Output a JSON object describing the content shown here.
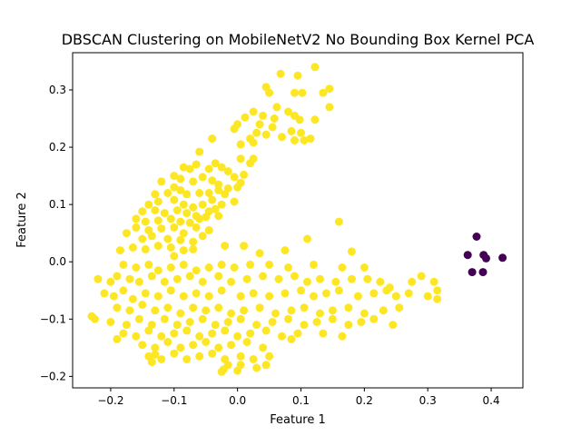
{
  "chart_data": {
    "type": "scatter",
    "title": "DBSCAN Clustering on MobileNetV2 No Bounding Box Kernel PCA",
    "xlabel": "Feature 1",
    "ylabel": "Feature 2",
    "xlim": [
      -0.26,
      0.45
    ],
    "ylim": [
      -0.22,
      0.365
    ],
    "xticks": [
      -0.2,
      -0.1,
      0.0,
      0.1,
      0.2,
      0.3,
      0.4
    ],
    "xtick_labels": [
      "−0.2",
      "−0.1",
      "0.0",
      "0.1",
      "0.2",
      "0.3",
      "0.4"
    ],
    "yticks": [
      -0.2,
      -0.1,
      0.0,
      0.1,
      0.2,
      0.3
    ],
    "ytick_labels": [
      "−0.2",
      "−0.1",
      "0.0",
      "0.1",
      "0.2",
      "0.3"
    ],
    "grid": false,
    "colors": {
      "cluster": "#fde725",
      "noise": "#440154"
    },
    "series": [
      {
        "color": "#fde725",
        "points": [
          [
            0.068,
            0.328
          ],
          [
            0.122,
            0.34
          ],
          [
            0.095,
            0.325
          ],
          [
            0.045,
            0.305
          ],
          [
            0.05,
            0.295
          ],
          [
            0.135,
            0.295
          ],
          [
            0.145,
            0.302
          ],
          [
            0.09,
            0.295
          ],
          [
            0.102,
            0.295
          ],
          [
            0.025,
            0.262
          ],
          [
            0.04,
            0.255
          ],
          [
            0.058,
            0.25
          ],
          [
            0.08,
            0.262
          ],
          [
            0.09,
            0.255
          ],
          [
            0.098,
            0.248
          ],
          [
            0.122,
            0.248
          ],
          [
            0.012,
            0.252
          ],
          [
            0.062,
            0.27
          ],
          [
            0.035,
            0.24
          ],
          [
            0.055,
            0.235
          ],
          [
            0.085,
            0.228
          ],
          [
            0.1,
            0.225
          ],
          [
            0.115,
            0.215
          ],
          [
            0.145,
            0.27
          ],
          [
            0.0,
            0.24
          ],
          [
            0.03,
            0.225
          ],
          [
            -0.005,
            0.232
          ],
          [
            0.02,
            0.215
          ],
          [
            0.045,
            0.222
          ],
          [
            0.07,
            0.218
          ],
          [
            0.09,
            0.212
          ],
          [
            0.105,
            0.212
          ],
          [
            0.005,
            0.205
          ],
          [
            0.025,
            0.208
          ],
          [
            -0.04,
            0.215
          ],
          [
            -0.06,
            0.192
          ],
          [
            -0.035,
            0.172
          ],
          [
            -0.075,
            0.162
          ],
          [
            -0.1,
            0.15
          ],
          [
            -0.09,
            0.145
          ],
          [
            0.02,
            0.172
          ],
          [
            0.025,
            0.18
          ],
          [
            0.005,
            0.18
          ],
          [
            -0.085,
            0.165
          ],
          [
            -0.065,
            0.17
          ],
          [
            -0.045,
            0.162
          ],
          [
            -0.025,
            0.165
          ],
          [
            -0.015,
            0.158
          ],
          [
            -0.005,
            0.148
          ],
          [
            0.01,
            0.152
          ],
          [
            -0.12,
            0.14
          ],
          [
            -0.1,
            0.13
          ],
          [
            -0.07,
            0.14
          ],
          [
            -0.055,
            0.148
          ],
          [
            -0.04,
            0.142
          ],
          [
            -0.03,
            0.135
          ],
          [
            -0.015,
            0.128
          ],
          [
            0.005,
            0.138
          ],
          [
            -0.13,
            0.118
          ],
          [
            -0.11,
            0.12
          ],
          [
            -0.09,
            0.125
          ],
          [
            -0.08,
            0.118
          ],
          [
            -0.06,
            0.12
          ],
          [
            -0.045,
            0.12
          ],
          [
            -0.03,
            0.125
          ],
          [
            -0.02,
            0.118
          ],
          [
            0.0,
            0.13
          ],
          [
            -0.14,
            0.1
          ],
          [
            -0.125,
            0.105
          ],
          [
            -0.1,
            0.108
          ],
          [
            -0.085,
            0.1
          ],
          [
            -0.07,
            0.095
          ],
          [
            -0.055,
            0.1
          ],
          [
            -0.04,
            0.108
          ],
          [
            -0.025,
            0.1
          ],
          [
            -0.005,
            0.105
          ],
          [
            -0.15,
            0.088
          ],
          [
            -0.13,
            0.09
          ],
          [
            -0.115,
            0.085
          ],
          [
            -0.095,
            0.09
          ],
          [
            -0.08,
            0.085
          ],
          [
            -0.065,
            0.08
          ],
          [
            -0.045,
            0.088
          ],
          [
            -0.035,
            0.092
          ],
          [
            -0.16,
            0.075
          ],
          [
            -0.145,
            0.07
          ],
          [
            -0.125,
            0.072
          ],
          [
            -0.105,
            0.075
          ],
          [
            -0.09,
            0.07
          ],
          [
            -0.075,
            0.068
          ],
          [
            -0.06,
            0.075
          ],
          [
            -0.05,
            0.078
          ],
          [
            -0.03,
            0.08
          ],
          [
            -0.175,
            0.05
          ],
          [
            -0.16,
            0.06
          ],
          [
            -0.14,
            0.055
          ],
          [
            -0.12,
            0.058
          ],
          [
            -0.1,
            0.06
          ],
          [
            -0.085,
            0.05
          ],
          [
            -0.065,
            0.06
          ],
          [
            -0.045,
            0.055
          ],
          [
            -0.15,
            0.04
          ],
          [
            -0.135,
            0.045
          ],
          [
            -0.11,
            0.04
          ],
          [
            -0.09,
            0.038
          ],
          [
            -0.07,
            0.035
          ],
          [
            -0.055,
            0.045
          ],
          [
            -0.185,
            0.02
          ],
          [
            -0.165,
            0.025
          ],
          [
            -0.145,
            0.022
          ],
          [
            -0.125,
            0.028
          ],
          [
            -0.105,
            0.025
          ],
          [
            -0.085,
            0.02
          ],
          [
            -0.07,
            0.022
          ],
          [
            -0.1,
            0.01
          ],
          [
            0.075,
            0.02
          ],
          [
            0.11,
            0.04
          ],
          [
            0.16,
            0.07
          ],
          [
            0.18,
            0.018
          ],
          [
            0.01,
            0.028
          ],
          [
            -0.02,
            0.028
          ],
          [
            0.035,
            0.015
          ],
          [
            -0.18,
            -0.005
          ],
          [
            -0.16,
            -0.01
          ],
          [
            -0.14,
            -0.005
          ],
          [
            -0.125,
            -0.015
          ],
          [
            -0.105,
            -0.01
          ],
          [
            -0.085,
            -0.005
          ],
          [
            -0.065,
            -0.015
          ],
          [
            -0.045,
            -0.01
          ],
          [
            -0.025,
            -0.005
          ],
          [
            -0.005,
            -0.01
          ],
          [
            0.02,
            -0.005
          ],
          [
            0.05,
            -0.005
          ],
          [
            0.08,
            -0.01
          ],
          [
            0.12,
            -0.005
          ],
          [
            0.165,
            -0.01
          ],
          [
            0.2,
            -0.01
          ],
          [
            -0.22,
            -0.03
          ],
          [
            -0.2,
            -0.035
          ],
          [
            -0.19,
            -0.025
          ],
          [
            -0.17,
            -0.03
          ],
          [
            -0.155,
            -0.035
          ],
          [
            -0.135,
            -0.025
          ],
          [
            -0.115,
            -0.035
          ],
          [
            -0.095,
            -0.03
          ],
          [
            -0.075,
            -0.025
          ],
          [
            -0.055,
            -0.035
          ],
          [
            -0.03,
            -0.025
          ],
          [
            -0.01,
            -0.035
          ],
          [
            0.015,
            -0.03
          ],
          [
            0.04,
            -0.025
          ],
          [
            0.065,
            -0.03
          ],
          [
            0.09,
            -0.025
          ],
          [
            0.11,
            -0.035
          ],
          [
            0.13,
            -0.03
          ],
          [
            0.155,
            -0.035
          ],
          [
            0.18,
            -0.03
          ],
          [
            0.205,
            -0.03
          ],
          [
            0.225,
            -0.035
          ],
          [
            0.24,
            -0.045
          ],
          [
            0.275,
            -0.035
          ],
          [
            0.31,
            -0.035
          ],
          [
            0.315,
            -0.05
          ],
          [
            0.29,
            -0.025
          ],
          [
            -0.21,
            -0.055
          ],
          [
            -0.195,
            -0.06
          ],
          [
            -0.18,
            -0.05
          ],
          [
            -0.165,
            -0.065
          ],
          [
            -0.145,
            -0.055
          ],
          [
            -0.125,
            -0.06
          ],
          [
            -0.105,
            -0.05
          ],
          [
            -0.085,
            -0.06
          ],
          [
            -0.065,
            -0.055
          ],
          [
            -0.045,
            -0.06
          ],
          [
            -0.025,
            -0.05
          ],
          [
            0.005,
            -0.06
          ],
          [
            0.025,
            -0.055
          ],
          [
            0.05,
            -0.06
          ],
          [
            0.075,
            -0.055
          ],
          [
            0.1,
            -0.05
          ],
          [
            0.12,
            -0.06
          ],
          [
            0.14,
            -0.055
          ],
          [
            0.16,
            -0.05
          ],
          [
            0.19,
            -0.06
          ],
          [
            0.215,
            -0.055
          ],
          [
            0.235,
            -0.05
          ],
          [
            0.25,
            -0.06
          ],
          [
            0.27,
            -0.055
          ],
          [
            0.3,
            -0.06
          ],
          [
            0.315,
            -0.065
          ],
          [
            -0.19,
            -0.08
          ],
          [
            -0.17,
            -0.085
          ],
          [
            -0.15,
            -0.075
          ],
          [
            -0.13,
            -0.085
          ],
          [
            -0.11,
            -0.08
          ],
          [
            -0.09,
            -0.09
          ],
          [
            -0.07,
            -0.08
          ],
          [
            -0.05,
            -0.085
          ],
          [
            -0.03,
            -0.08
          ],
          [
            -0.01,
            -0.09
          ],
          [
            0.01,
            -0.085
          ],
          [
            0.035,
            -0.08
          ],
          [
            0.06,
            -0.09
          ],
          [
            0.085,
            -0.085
          ],
          [
            0.105,
            -0.08
          ],
          [
            0.13,
            -0.09
          ],
          [
            0.15,
            -0.085
          ],
          [
            0.175,
            -0.08
          ],
          [
            0.2,
            -0.09
          ],
          [
            0.23,
            -0.085
          ],
          [
            0.255,
            -0.08
          ],
          [
            -0.23,
            -0.095
          ],
          [
            -0.225,
            -0.1
          ],
          [
            -0.2,
            -0.105
          ],
          [
            -0.175,
            -0.11
          ],
          [
            -0.155,
            -0.1
          ],
          [
            -0.135,
            -0.11
          ],
          [
            -0.115,
            -0.1
          ],
          [
            -0.095,
            -0.11
          ],
          [
            -0.075,
            -0.105
          ],
          [
            -0.055,
            -0.1
          ],
          [
            -0.035,
            -0.11
          ],
          [
            -0.015,
            -0.105
          ],
          [
            0.005,
            -0.1
          ],
          [
            0.03,
            -0.11
          ],
          [
            0.055,
            -0.105
          ],
          [
            0.08,
            -0.1
          ],
          [
            0.105,
            -0.11
          ],
          [
            0.125,
            -0.105
          ],
          [
            0.15,
            -0.1
          ],
          [
            0.175,
            -0.11
          ],
          [
            0.195,
            -0.105
          ],
          [
            0.215,
            -0.1
          ],
          [
            0.245,
            -0.11
          ],
          [
            -0.18,
            -0.125
          ],
          [
            -0.16,
            -0.13
          ],
          [
            -0.14,
            -0.12
          ],
          [
            -0.12,
            -0.13
          ],
          [
            -0.1,
            -0.125
          ],
          [
            -0.08,
            -0.12
          ],
          [
            -0.06,
            -0.13
          ],
          [
            -0.04,
            -0.125
          ],
          [
            -0.02,
            -0.12
          ],
          [
            0.0,
            -0.13
          ],
          [
            0.02,
            -0.125
          ],
          [
            0.045,
            -0.12
          ],
          [
            0.07,
            -0.13
          ],
          [
            0.095,
            -0.125
          ],
          [
            0.135,
            -0.125
          ],
          [
            0.165,
            -0.13
          ],
          [
            -0.19,
            -0.135
          ],
          [
            -0.15,
            -0.145
          ],
          [
            -0.13,
            -0.15
          ],
          [
            -0.11,
            -0.14
          ],
          [
            -0.09,
            -0.15
          ],
          [
            -0.07,
            -0.145
          ],
          [
            -0.05,
            -0.14
          ],
          [
            -0.03,
            -0.15
          ],
          [
            -0.01,
            -0.145
          ],
          [
            0.015,
            -0.14
          ],
          [
            0.04,
            -0.15
          ],
          [
            0.085,
            -0.135
          ],
          [
            -0.14,
            -0.165
          ],
          [
            -0.12,
            -0.17
          ],
          [
            -0.1,
            -0.16
          ],
          [
            -0.08,
            -0.17
          ],
          [
            -0.06,
            -0.165
          ],
          [
            -0.04,
            -0.16
          ],
          [
            -0.02,
            -0.17
          ],
          [
            0.005,
            -0.165
          ],
          [
            0.025,
            -0.17
          ],
          [
            0.05,
            -0.165
          ],
          [
            -0.135,
            -0.175
          ],
          [
            -0.015,
            -0.18
          ],
          [
            0.005,
            -0.18
          ],
          [
            0.045,
            -0.18
          ],
          [
            -0.13,
            -0.162
          ],
          [
            -0.025,
            -0.192
          ],
          [
            -0.022,
            -0.188
          ],
          [
            0.0,
            -0.19
          ],
          [
            0.03,
            -0.185
          ]
        ]
      },
      {
        "color": "#440154",
        "points": [
          [
            0.377,
            0.044
          ],
          [
            0.363,
            0.012
          ],
          [
            0.388,
            0.012
          ],
          [
            0.392,
            0.006
          ],
          [
            0.418,
            0.007
          ],
          [
            0.37,
            -0.018
          ],
          [
            0.387,
            -0.018
          ]
        ]
      }
    ]
  }
}
